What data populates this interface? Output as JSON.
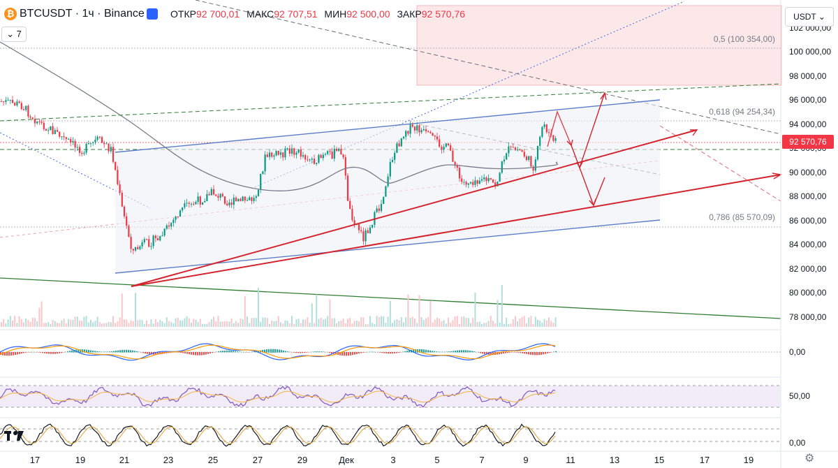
{
  "header": {
    "symbol": "BTCUSDT · 1ч · Binance",
    "open_label": "ОТКР",
    "open_value": "92 700,01",
    "high_label": "МАКС",
    "high_value": "92 707,51",
    "low_label": "МИН",
    "low_value": "92 500,00",
    "close_label": "ЗАКР",
    "close_value": "92 570,76"
  },
  "indicator_toggle": "7",
  "currency_button": "USDT",
  "current_price_label": "92 570,76",
  "price_axis": [
    "102 000,00",
    "100 000,00",
    "98 000,00",
    "96 000,00",
    "94 000,00",
    "92 000,00",
    "90 000,00",
    "88 000,00",
    "86 000,00",
    "84 000,00",
    "82 000,00",
    "80 000,00",
    "78 000,00"
  ],
  "fib_labels": [
    "0,5 (100 354,00)",
    "0,618 (94 254,34)",
    "0,786 (85 570,09)"
  ],
  "indicator_axis": [
    "0,00",
    "50,00",
    "0,00"
  ],
  "time_axis": [
    "17",
    "19",
    "21",
    "23",
    "25",
    "27",
    "29",
    "Дек",
    "3",
    "5",
    "7",
    "9",
    "11",
    "13",
    "15",
    "17",
    "19"
  ],
  "colors": {
    "up": "#089981",
    "down": "#f23645",
    "trend_blue": "#5b7dc8",
    "forecast_red": "#d3242e",
    "ma": "#787b86",
    "green": "#2e7d32"
  },
  "chart_data": {
    "type": "candlestick",
    "price_axis_range": [
      78000,
      102000
    ],
    "key_levels": [
      {
        "label": "0,5 (100 354,00)",
        "value": 100354
      },
      {
        "label": "0,618 (94 254,34)",
        "value": 94254.34
      },
      {
        "label": "0,786 (85 570,09)",
        "value": 85570.09
      }
    ],
    "last_close": 92570.76
  }
}
